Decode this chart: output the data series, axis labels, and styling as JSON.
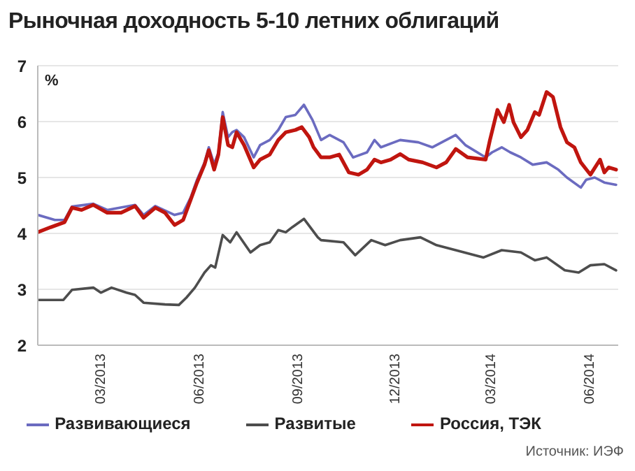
{
  "chart_data": {
    "type": "line",
    "title": "Рыночная доходность 5-10 летних облигаций",
    "ylabel": "%",
    "annotations": [
      "Источник: ИЭФ"
    ],
    "xlim": [
      "2013-01-01",
      "2014-06-28"
    ],
    "ylim": [
      2,
      7
    ],
    "yticks": [
      2,
      3,
      4,
      5,
      6,
      7
    ],
    "xticks": [
      {
        "value": "2013-03-01",
        "label": "03/2013"
      },
      {
        "value": "2013-06-01",
        "label": "06/2013"
      },
      {
        "value": "2013-09-01",
        "label": "09/2013"
      },
      {
        "value": "2013-12-01",
        "label": "12/2013"
      },
      {
        "value": "2014-03-01",
        "label": "03/2014"
      },
      {
        "value": "2014-06-01",
        "label": "06/2014"
      }
    ],
    "grid": "y",
    "legend": "bottom",
    "marker": "none",
    "line_style": "solid",
    "series": [
      {
        "name": "Развивающиеся",
        "color": "#6b6bc0",
        "x": [
          "2013-01-01",
          "2013-01-17",
          "2013-01-26",
          "2013-02-02",
          "2013-02-22",
          "2013-03-07",
          "2013-04-02",
          "2013-04-10",
          "2013-04-21",
          "2013-05-09",
          "2013-05-17",
          "2013-05-24",
          "2013-05-30",
          "2013-06-06",
          "2013-06-10",
          "2013-06-15",
          "2013-06-19",
          "2013-06-23",
          "2013-06-28",
          "2013-07-02",
          "2013-07-06",
          "2013-07-13",
          "2013-07-22",
          "2013-07-28",
          "2013-08-06",
          "2013-08-14",
          "2013-08-21",
          "2013-08-30",
          "2013-09-07",
          "2013-09-15",
          "2013-09-23",
          "2013-10-01",
          "2013-10-14",
          "2013-10-23",
          "2013-11-05",
          "2013-11-12",
          "2013-11-18",
          "2013-12-06",
          "2013-12-23",
          "2014-01-05",
          "2014-01-18",
          "2014-01-27",
          "2014-02-05",
          "2014-02-24",
          "2014-03-02",
          "2014-03-11",
          "2014-03-19",
          "2014-03-29",
          "2014-04-09",
          "2014-04-22",
          "2014-05-03",
          "2014-05-11",
          "2014-05-24",
          "2014-05-29",
          "2014-06-06",
          "2014-06-15",
          "2014-06-26"
        ],
        "values": [
          4.33,
          4.24,
          4.24,
          4.48,
          4.53,
          4.42,
          4.51,
          4.33,
          4.49,
          4.33,
          4.37,
          4.64,
          4.96,
          5.27,
          5.54,
          5.24,
          5.45,
          6.17,
          5.72,
          5.81,
          5.85,
          5.72,
          5.36,
          5.58,
          5.67,
          5.85,
          6.08,
          6.12,
          6.3,
          6.03,
          5.67,
          5.76,
          5.63,
          5.36,
          5.45,
          5.67,
          5.54,
          5.67,
          5.63,
          5.54,
          5.67,
          5.76,
          5.58,
          5.36,
          5.45,
          5.54,
          5.45,
          5.36,
          5.23,
          5.27,
          5.14,
          5.0,
          4.82,
          4.96,
          5.0,
          4.91,
          4.87
        ]
      },
      {
        "name": "Развитые",
        "color": "#4d4d4d",
        "x": [
          "2013-01-01",
          "2013-01-25",
          "2013-02-02",
          "2013-02-22",
          "2013-03-01",
          "2013-03-11",
          "2013-03-25",
          "2013-04-02",
          "2013-04-10",
          "2013-04-30",
          "2013-05-13",
          "2013-05-20",
          "2013-05-28",
          "2013-06-06",
          "2013-06-12",
          "2013-06-16",
          "2013-06-23",
          "2013-06-30",
          "2013-07-06",
          "2013-07-19",
          "2013-07-28",
          "2013-08-06",
          "2013-08-14",
          "2013-08-21",
          "2013-08-27",
          "2013-09-07",
          "2013-09-20",
          "2013-09-23",
          "2013-10-14",
          "2013-10-25",
          "2013-11-09",
          "2013-11-22",
          "2013-12-06",
          "2013-12-25",
          "2014-01-09",
          "2014-01-27",
          "2014-02-22",
          "2014-03-11",
          "2014-03-29",
          "2014-04-11",
          "2014-04-22",
          "2014-05-09",
          "2014-05-22",
          "2014-06-02",
          "2014-06-15",
          "2014-06-26"
        ],
        "values": [
          2.81,
          2.81,
          2.99,
          3.03,
          2.94,
          3.03,
          2.94,
          2.9,
          2.76,
          2.73,
          2.72,
          2.85,
          3.03,
          3.3,
          3.43,
          3.39,
          3.97,
          3.84,
          4.02,
          3.66,
          3.79,
          3.84,
          4.06,
          4.02,
          4.11,
          4.26,
          3.93,
          3.88,
          3.84,
          3.61,
          3.88,
          3.79,
          3.88,
          3.93,
          3.79,
          3.7,
          3.57,
          3.7,
          3.66,
          3.52,
          3.57,
          3.34,
          3.3,
          3.43,
          3.45,
          3.34
        ]
      },
      {
        "name": "Россия, ТЭК",
        "color": "#c0150f",
        "x": [
          "2013-01-01",
          "2013-01-13",
          "2013-01-26",
          "2013-02-02",
          "2013-02-11",
          "2013-02-22",
          "2013-03-07",
          "2013-03-20",
          "2013-04-02",
          "2013-04-10",
          "2013-04-21",
          "2013-04-30",
          "2013-05-09",
          "2013-05-17",
          "2013-05-24",
          "2013-05-30",
          "2013-06-06",
          "2013-06-10",
          "2013-06-15",
          "2013-06-19",
          "2013-06-23",
          "2013-06-28",
          "2013-07-02",
          "2013-07-06",
          "2013-07-13",
          "2013-07-22",
          "2013-07-28",
          "2013-08-06",
          "2013-08-14",
          "2013-08-21",
          "2013-08-30",
          "2013-09-05",
          "2013-09-12",
          "2013-09-16",
          "2013-09-23",
          "2013-10-01",
          "2013-10-10",
          "2013-10-19",
          "2013-10-28",
          "2013-11-05",
          "2013-11-12",
          "2013-11-18",
          "2013-11-27",
          "2013-12-06",
          "2013-12-14",
          "2013-12-27",
          "2014-01-09",
          "2014-01-18",
          "2014-01-27",
          "2014-02-07",
          "2014-02-24",
          "2014-02-28",
          "2014-03-07",
          "2014-03-13",
          "2014-03-18",
          "2014-03-22",
          "2014-03-29",
          "2014-04-04",
          "2014-04-11",
          "2014-04-15",
          "2014-04-22",
          "2014-04-28",
          "2014-05-05",
          "2014-05-11",
          "2014-05-18",
          "2014-05-24",
          "2014-06-02",
          "2014-06-11",
          "2014-06-15",
          "2014-06-19",
          "2014-06-26"
        ],
        "values": [
          4.02,
          4.11,
          4.2,
          4.46,
          4.42,
          4.51,
          4.37,
          4.37,
          4.49,
          4.28,
          4.46,
          4.37,
          4.15,
          4.24,
          4.6,
          4.91,
          5.23,
          5.49,
          5.14,
          5.41,
          6.08,
          5.58,
          5.54,
          5.81,
          5.58,
          5.18,
          5.32,
          5.41,
          5.67,
          5.81,
          5.85,
          5.9,
          5.72,
          5.54,
          5.36,
          5.36,
          5.41,
          5.09,
          5.05,
          5.14,
          5.32,
          5.27,
          5.32,
          5.42,
          5.32,
          5.27,
          5.18,
          5.27,
          5.51,
          5.36,
          5.32,
          5.67,
          6.21,
          5.99,
          6.3,
          5.99,
          5.72,
          5.85,
          6.17,
          6.12,
          6.53,
          6.44,
          5.9,
          5.63,
          5.54,
          5.27,
          5.05,
          5.32,
          5.09,
          5.18,
          5.14
        ]
      }
    ]
  }
}
